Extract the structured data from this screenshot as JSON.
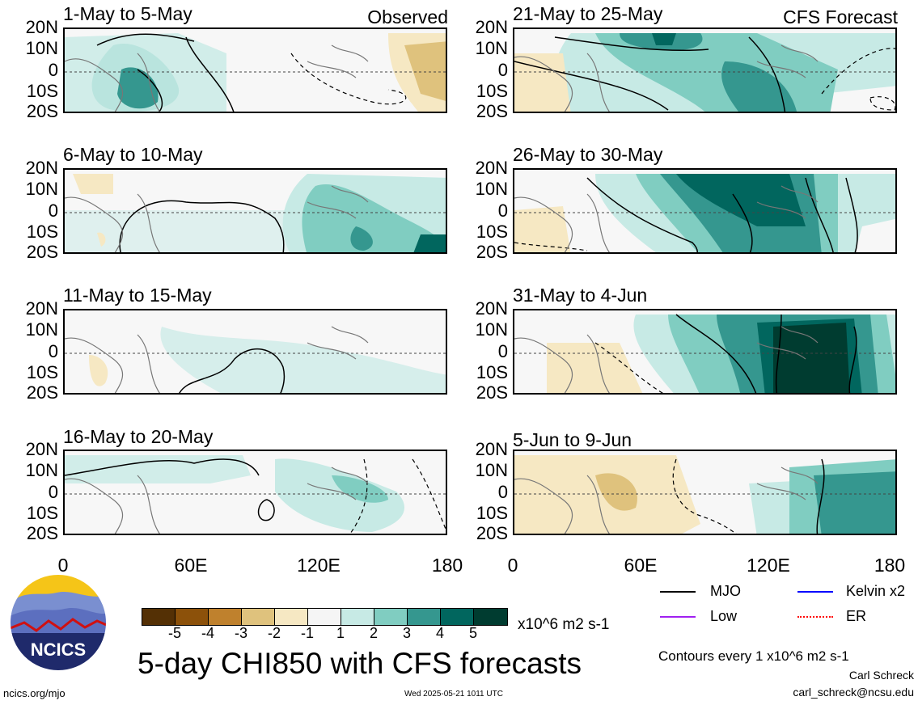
{
  "panels": [
    {
      "title": "1-May to 5-May",
      "tag": "Observed"
    },
    {
      "title": "6-May to 10-May",
      "tag": ""
    },
    {
      "title": "11-May to 15-May",
      "tag": ""
    },
    {
      "title": "16-May to 20-May",
      "tag": ""
    },
    {
      "title": "21-May to 25-May",
      "tag": "CFS Forecast"
    },
    {
      "title": "26-May to 30-May",
      "tag": ""
    },
    {
      "title": "31-May to 4-Jun",
      "tag": ""
    },
    {
      "title": "5-Jun to 9-Jun",
      "tag": ""
    }
  ],
  "lat_labels": [
    "20N",
    "10N",
    "0",
    "10S",
    "20S"
  ],
  "lon_labels": [
    "0",
    "60E",
    "120E",
    "180"
  ],
  "colorbar": {
    "colors": [
      "#543005",
      "#8c510a",
      "#bf812d",
      "#dfc27d",
      "#f6e8c3",
      "#f5f5f5",
      "#c7eae5",
      "#80cdc1",
      "#35978f",
      "#01665e",
      "#003c30"
    ],
    "labels": [
      "-5",
      "-4",
      "-3",
      "-2",
      "-1",
      "1",
      "2",
      "3",
      "4",
      "5"
    ],
    "units": "x10^6 m2 s-1"
  },
  "legend": [
    {
      "label": "MJO",
      "color": "#000000"
    },
    {
      "label": "Kelvin x2",
      "color": "#0000ff"
    },
    {
      "label": "Low",
      "color": "#a020f0"
    },
    {
      "label": "ER",
      "color": "#ff0000"
    }
  ],
  "title": "5-day CHI850 with CFS forecasts",
  "contour_note": "Contours every 1 x10^6 m2 s-1",
  "author": "Carl Schreck",
  "email": "carl_schreck@ncsu.edu",
  "website": "ncics.org/mjo",
  "timestamp": "Wed 2025-05-21 1011 UTC",
  "logo_text": "NCICS"
}
